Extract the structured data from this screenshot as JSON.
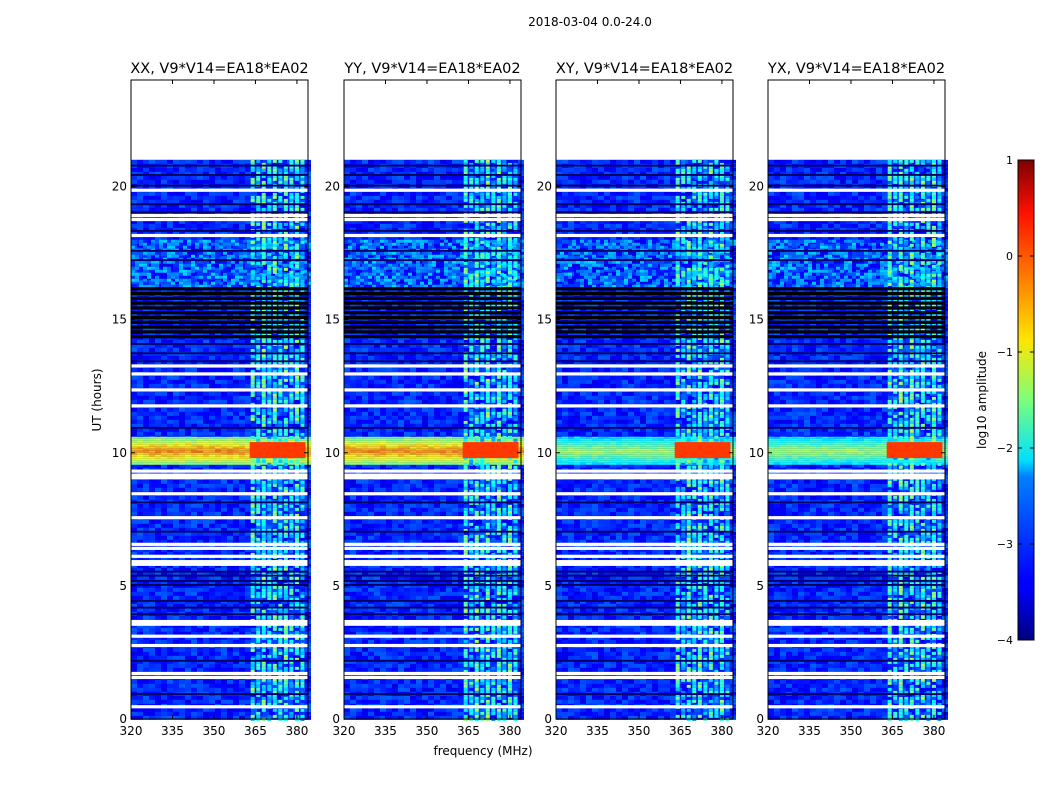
{
  "chart_data": {
    "type": "heatmap",
    "title": "2018-03-04 0.0-24.0",
    "xlabel": "frequency (MHz)",
    "ylabel": "UT (hours)",
    "xlim": [
      320,
      384
    ],
    "ylim": [
      0,
      24
    ],
    "xticks": [
      320,
      335,
      350,
      365,
      380
    ],
    "yticks": [
      0,
      5,
      10,
      15,
      20
    ],
    "panels": [
      {
        "title": "XX, V9*V14=EA18*EA02",
        "pol": "XX"
      },
      {
        "title": "YY, V9*V14=EA18*EA02",
        "pol": "YY"
      },
      {
        "title": "XY, V9*V14=EA18*EA02",
        "pol": "XY"
      },
      {
        "title": "YX, V9*V14=EA18*EA02",
        "pol": "YX"
      }
    ],
    "data_end_hour": 21.0,
    "rfi_band_mhz": [
      362,
      384
    ],
    "rfi_channels_mhz": [
      364,
      366,
      368,
      370,
      372,
      374,
      376,
      378,
      380,
      382
    ],
    "bright_interval_hours": [
      9.6,
      10.6
    ],
    "flagged_hours": [
      0.4,
      1.5,
      1.65,
      2.7,
      3.05,
      3.5,
      3.6,
      5.75,
      5.85,
      6.05,
      6.35,
      6.5,
      7.5,
      8.4,
      9.0,
      9.1,
      9.25,
      11.7,
      12.3,
      12.9,
      13.2,
      18.1,
      18.7,
      18.85,
      19.8
    ],
    "dark_hours": [
      0.9,
      2.15,
      3.9,
      4.15,
      4.4,
      5.0,
      5.15,
      5.35,
      5.5,
      7.0,
      8.1,
      10.9,
      13.4,
      13.7,
      14.05,
      17.2,
      17.55,
      18.3,
      19.0,
      19.3,
      20.0,
      20.4,
      20.75
    ],
    "black_striped_range_hours": [
      14.3,
      16.2
    ],
    "colorbar": {
      "label": "log10 amplitude",
      "min": -4,
      "max": 1,
      "ticks": [
        1,
        0,
        -1,
        -2,
        -3,
        -4
      ],
      "colormap": "jet"
    }
  }
}
